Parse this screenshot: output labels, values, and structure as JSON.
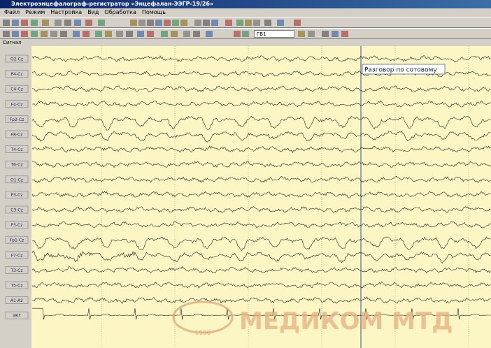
{
  "window": {
    "title": "Электроэнцефалограф-регистратор «Энцефалан-ЭЭГР-19/26»"
  },
  "menu": [
    "Файл",
    "Режим",
    "Настройка",
    "Вид",
    "Обработка",
    "Помощь"
  ],
  "toolbar": {
    "combo": "ГВ1"
  },
  "panel": {
    "header": "Сигнал",
    "channels": [
      "O2-Cz",
      "P4-Cz",
      "C4-Cz",
      "F4-Cz",
      "Fp2-Cz",
      "F8-Cz",
      "T4-Cz",
      "T6-Cz",
      "O1-Cz",
      "P3-Cz",
      "C3-Cz",
      "F3-Cz",
      "Fp1-Cz",
      "F7-Cz",
      "T3-Cz",
      "T5-Cz",
      "A1-A2",
      "ЭКГ"
    ],
    "annotation": "Разговор по сотовому"
  },
  "watermark": {
    "brand": "МЕДИКОМ МТД",
    "year": "1990"
  }
}
